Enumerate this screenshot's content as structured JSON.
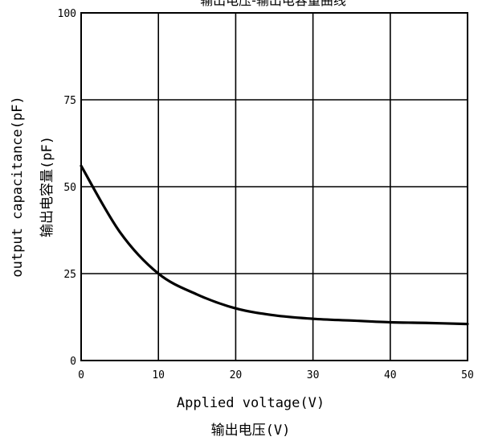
{
  "chart_data": {
    "type": "line",
    "title": "输出电压-输出电容量曲线",
    "xlabel": "Applied voltage(V)",
    "xlabel_secondary": "输出电压(V)",
    "ylabel": "output capacitance(pF)",
    "ylabel_secondary": "输出电容量(pF)",
    "xlim": [
      0,
      50
    ],
    "ylim": [
      0,
      100
    ],
    "x_ticks": [
      0,
      10,
      20,
      30,
      40,
      50
    ],
    "y_ticks": [
      0,
      25,
      50,
      75,
      100
    ],
    "grid": true,
    "line_color": "#000000",
    "series": [
      {
        "x": [
          0,
          5,
          10,
          15,
          20,
          25,
          30,
          35,
          40,
          45,
          50
        ],
        "y": [
          56,
          37,
          25,
          19,
          15,
          13,
          12,
          11.5,
          11,
          10.8,
          10.5
        ]
      }
    ]
  }
}
